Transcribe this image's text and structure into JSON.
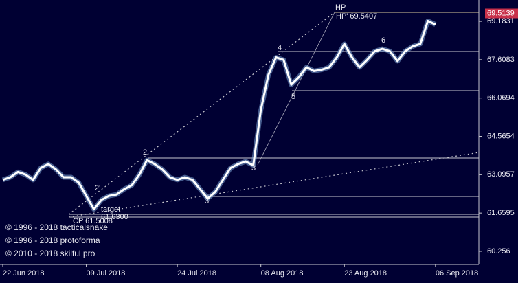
{
  "chart_data": {
    "type": "line",
    "categories": [
      "22 Jun 2018",
      null,
      null,
      null,
      null,
      null,
      null,
      null,
      null,
      null,
      null,
      "09 Jul 2018",
      null,
      null,
      null,
      null,
      null,
      null,
      null,
      null,
      null,
      null,
      null,
      "24 Jul 2018",
      null,
      null,
      null,
      null,
      null,
      null,
      null,
      null,
      null,
      null,
      "08 Aug 2018",
      null,
      null,
      null,
      null,
      null,
      null,
      null,
      null,
      null,
      null,
      "23 Aug 2018",
      null,
      null,
      null,
      null,
      null,
      null,
      null,
      null,
      null,
      null,
      null,
      "06 Sep 2018"
    ],
    "series": [
      {
        "color": "#ffffff",
        "values": [
          62.9,
          63.0,
          63.2,
          63.1,
          62.9,
          63.35,
          63.5,
          63.3,
          63.0,
          63.0,
          62.8,
          62.3,
          61.8,
          62.15,
          62.3,
          62.35,
          62.55,
          62.7,
          63.1,
          63.65,
          63.5,
          63.3,
          63.0,
          62.9,
          63.0,
          62.9,
          62.55,
          62.2,
          62.45,
          62.9,
          63.35,
          63.5,
          63.6,
          63.45,
          65.6,
          67.0,
          67.7,
          67.6,
          66.6,
          66.9,
          67.3,
          67.15,
          67.2,
          67.3,
          67.7,
          68.25,
          67.7,
          67.3,
          67.6,
          67.95,
          68.05,
          67.95,
          67.55,
          67.95,
          68.15,
          68.25,
          69.2,
          69.05
        ]
      }
    ],
    "ylim": [
      59.785,
      70.075
    ],
    "log": true,
    "yticks": [
      69.1831,
      67.6083,
      66.0694,
      64.5654,
      63.0957,
      61.6595,
      60.256
    ],
    "last_price": 69.5139,
    "annotations": [
      "HP",
      "HP' 69.5407",
      "2",
      "2'",
      "3",
      "3",
      "4",
      "5",
      "6",
      "target",
      "61.6300",
      "CP 61.5008"
    ],
    "copyright": [
      "© 1996 - 2018 tacticalsnake",
      "© 1996 - 2018 protoforma",
      "© 2010 - 2018 skilful pro"
    ]
  }
}
